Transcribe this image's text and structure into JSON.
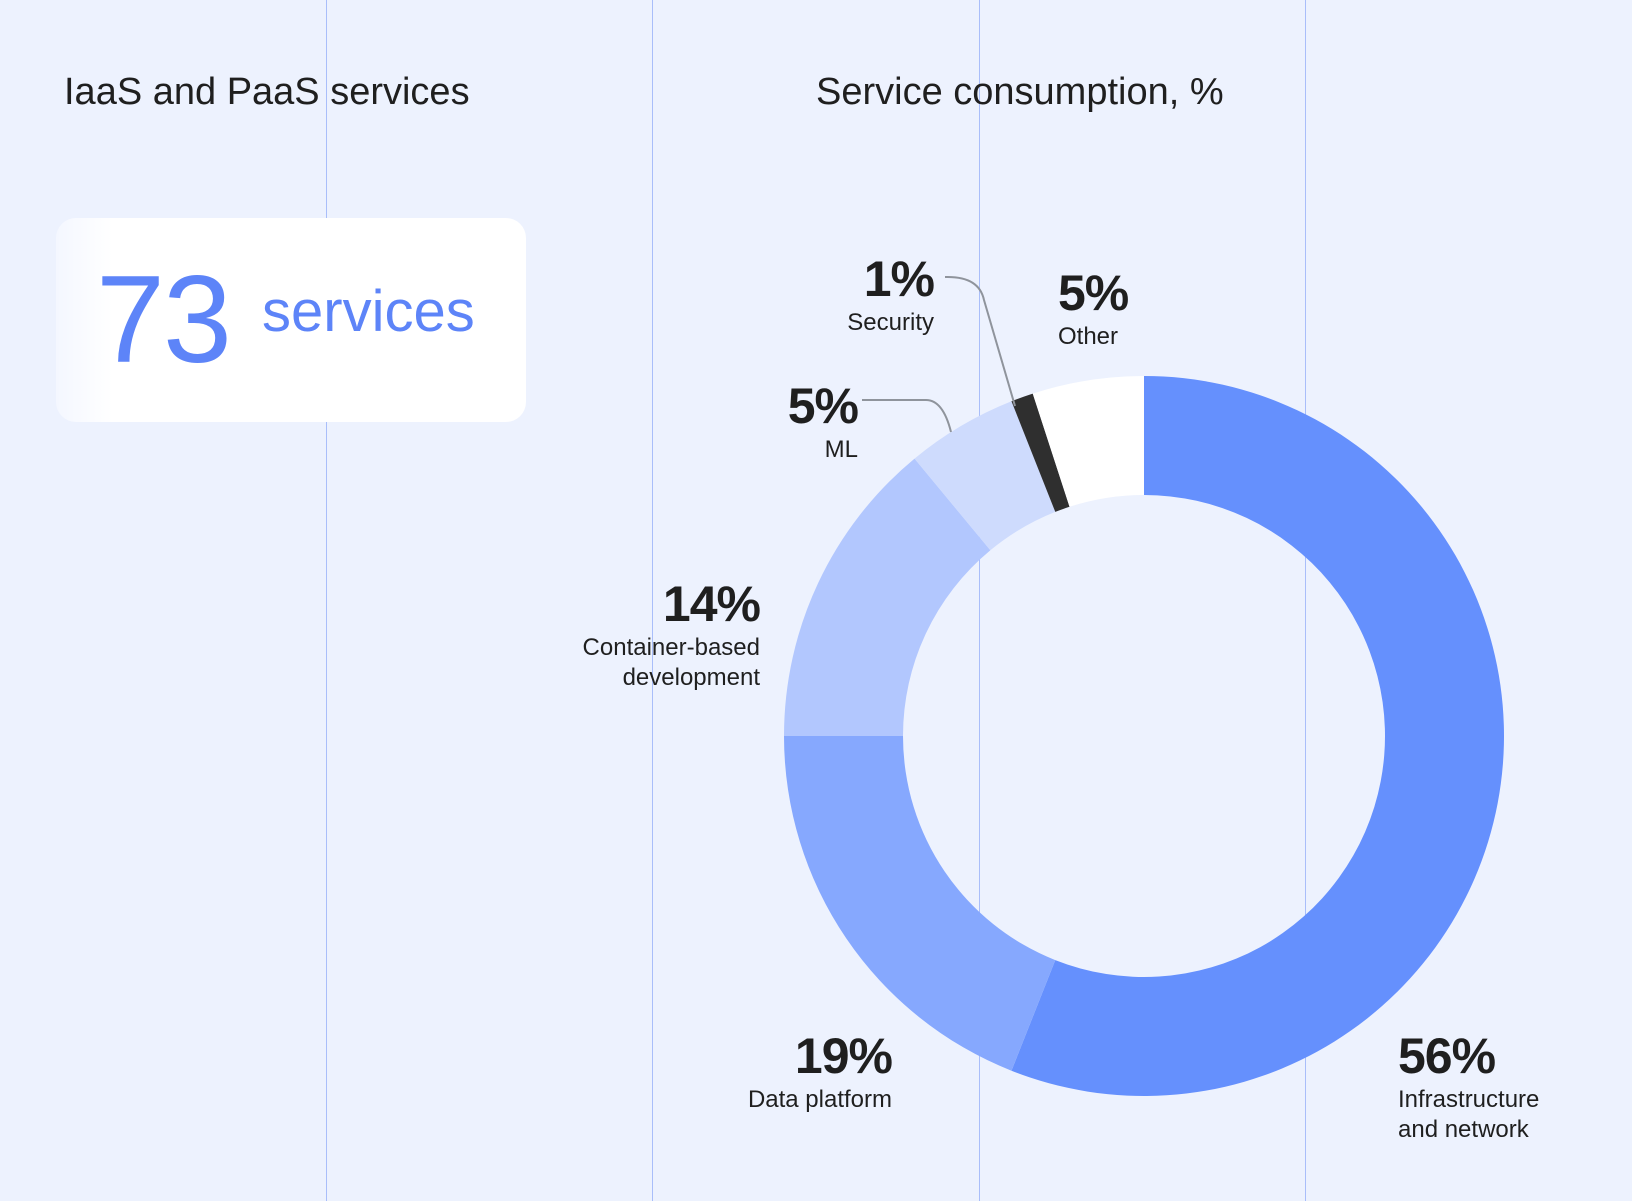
{
  "page": {
    "background_color": "#edf2fe",
    "grid_color": "#a9befa"
  },
  "left_section": {
    "title": "IaaS and PaaS services",
    "stat": {
      "value": "73",
      "unit": "services",
      "accent_color": "#5d84f8"
    }
  },
  "right_section": {
    "title": "Service consumption, %"
  },
  "chart_data": {
    "type": "pie",
    "title": "Service consumption, %",
    "unit": "%",
    "donut": true,
    "start_angle_deg": 0,
    "direction": "clockwise",
    "series": [
      {
        "name": "Infrastructure and network",
        "value": 56,
        "label_value": "56%",
        "label_name": "Infrastructure\nand network",
        "color": "#6590fd"
      },
      {
        "name": "Data platform",
        "value": 19,
        "label_value": "19%",
        "label_name": "Data platform",
        "color": "#86a8fe"
      },
      {
        "name": "Container-based development",
        "value": 14,
        "label_value": "14%",
        "label_name": "Container-based\ndevelopment",
        "color": "#b2c7fe"
      },
      {
        "name": "ML",
        "value": 5,
        "label_value": "5%",
        "label_name": "ML",
        "color": "#cedbfd"
      },
      {
        "name": "Security",
        "value": 1,
        "label_value": "1%",
        "label_name": "Security",
        "color": "#2f2f2f"
      },
      {
        "name": "Other",
        "value": 5,
        "label_value": "5%",
        "label_name": "Other",
        "color": "#ffffff"
      }
    ]
  }
}
